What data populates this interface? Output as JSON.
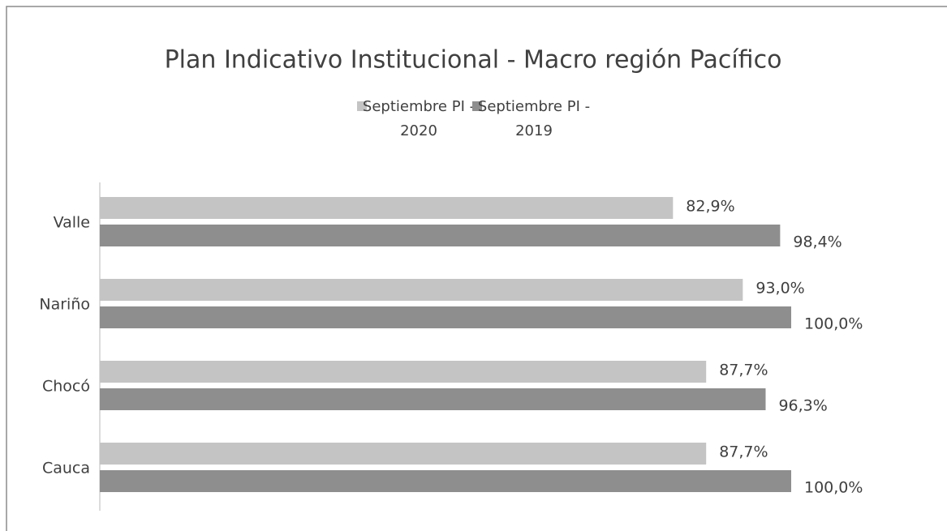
{
  "chart_data": {
    "type": "hbar",
    "title": "Plan Indicativo Institucional - Macro región Pacífico",
    "categories": [
      "Valle",
      "Nariño",
      "Chocó",
      "Cauca"
    ],
    "series": [
      {
        "name": "Septiembre PI - 2020",
        "color": "#c4c4c4",
        "values": [
          82.9,
          93.0,
          87.7,
          87.7
        ],
        "value_labels": [
          "82,9%",
          "93,0%",
          "87,7%",
          "87,7%"
        ]
      },
      {
        "name": "Septiembre PI - 2019",
        "color": "#8e8e8e",
        "values": [
          98.4,
          100.0,
          96.3,
          100.0
        ],
        "value_labels": [
          "98,4%",
          "100,0%",
          "96,3%",
          "100,0%"
        ]
      }
    ],
    "xlim": [
      0,
      100
    ],
    "legend": "top"
  }
}
